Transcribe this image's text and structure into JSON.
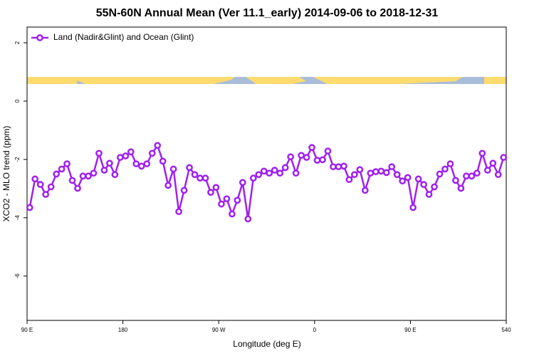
{
  "chart_data": {
    "type": "line",
    "title": "55N-60N Annual Mean (Ver 11.1_early)   2014-09-06 to 2018-12-31",
    "x_label": "Longitude (deg E)",
    "y_label": "XCO2 - MLO trend (ppm)",
    "legend_position": "top-left",
    "x": [
      92.5,
      97.5,
      102.5,
      107.5,
      112.5,
      117.5,
      122.5,
      127.5,
      132.5,
      137.5,
      142.5,
      147.5,
      152.5,
      157.5,
      162.5,
      167.5,
      172.5,
      177.5,
      182.5,
      187.5,
      192.5,
      197.5,
      202.5,
      207.5,
      212.5,
      217.5,
      222.5,
      227.5,
      232.5,
      237.5,
      242.5,
      247.5,
      252.5,
      257.5,
      262.5,
      267.5,
      272.5,
      277.5,
      282.5,
      287.5,
      292.5,
      297.5,
      302.5,
      307.5,
      312.5,
      317.5,
      322.5,
      327.5,
      332.5,
      337.5,
      342.5,
      347.5,
      352.5,
      357.5,
      362.5,
      367.5,
      372.5,
      377.5,
      382.5,
      387.5,
      392.5,
      397.5,
      402.5,
      407.5,
      412.5,
      417.5,
      422.5,
      427.5,
      432.5,
      437.5,
      442.5,
      447.5,
      452.5,
      457.5,
      462.5,
      467.5,
      472.5,
      477.5,
      482.5,
      487.5,
      492.5,
      497.5,
      502.5,
      507.5,
      512.5,
      517.5,
      522.5,
      527.5,
      532.5,
      537.5
    ],
    "series": [
      {
        "name": "Land (Nadir&Glint) and Ocean (Glint)",
        "color": "#a020f0",
        "values": [
          -3.65,
          -2.67,
          -2.86,
          -3.2,
          -2.94,
          -2.5,
          -2.33,
          -2.15,
          -2.72,
          -2.99,
          -2.57,
          -2.57,
          -2.47,
          -1.79,
          -2.37,
          -2.13,
          -2.52,
          -1.93,
          -1.88,
          -1.74,
          -2.15,
          -2.23,
          -2.15,
          -1.79,
          -1.52,
          -2.06,
          -2.89,
          -2.33,
          -3.79,
          -3.06,
          -2.28,
          -2.52,
          -2.64,
          -2.64,
          -3.13,
          -2.96,
          -3.53,
          -3.35,
          -3.87,
          -3.4,
          -2.79,
          -4.04,
          -2.64,
          -2.52,
          -2.4,
          -2.47,
          -2.37,
          -2.47,
          -2.28,
          -1.91,
          -2.47,
          -1.86,
          -1.93,
          -1.59,
          -2.03,
          -2.01,
          -1.71,
          -2.25,
          -2.25,
          -2.23,
          -2.69,
          -2.52,
          -2.35,
          -3.06,
          -2.47,
          -2.42,
          -2.4,
          -2.45,
          -2.25,
          -2.52,
          -2.74,
          -2.62,
          -3.65,
          -2.67,
          -2.86,
          -3.2,
          -2.94,
          -2.5,
          -2.33,
          -2.15,
          -2.72,
          -2.99,
          -2.57,
          -2.57,
          -2.47,
          -1.79,
          -2.37,
          -2.13,
          -2.52,
          -1.93
        ]
      }
    ],
    "xlim": [
      90,
      540
    ],
    "xticks": [
      {
        "value": 90,
        "label": "90 E"
      },
      180,
      {
        "value": 270,
        "label": "90 W"
      },
      {
        "value": 360,
        "label": "0"
      },
      {
        "value": 450,
        "label": "90 E"
      },
      540
    ],
    "ylim": [
      -7.52,
      2.54
    ],
    "yticks": [
      2,
      0,
      -2,
      -4,
      -6
    ]
  }
}
